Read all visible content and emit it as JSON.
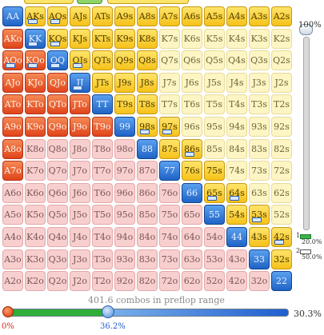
{
  "range_slider": {
    "top_percent": "100%",
    "indicator_1": "20.0%",
    "indicator_2": "50.0%",
    "indicator_1_index": "1",
    "indicator_2_index": "2"
  },
  "combo_label": "401.6 combos in preflop range",
  "bottom_slider": {
    "left_value": "0%",
    "right_value": "36.2%",
    "total_value": "30.3%",
    "right_fraction": 0.362
  },
  "hand_grid": {
    "rows": [
      [
        "AA",
        "AKs",
        "AQs",
        "AJs",
        "ATs",
        "A9s",
        "A8s",
        "A7s",
        "A6s",
        "A5s",
        "A4s",
        "A3s",
        "A2s"
      ],
      [
        "AKo",
        "KK",
        "KQs",
        "KJs",
        "KTs",
        "K9s",
        "K8s",
        "K7s",
        "K6s",
        "K5s",
        "K4s",
        "K3s",
        "K2s"
      ],
      [
        "AQo",
        "KQo",
        "QQ",
        "QJs",
        "QTs",
        "Q9s",
        "Q8s",
        "Q7s",
        "Q6s",
        "Q5s",
        "Q4s",
        "Q3s",
        "Q2s"
      ],
      [
        "AJo",
        "KJo",
        "QJo",
        "JJ",
        "JTs",
        "J9s",
        "J8s",
        "J7s",
        "J6s",
        "J5s",
        "J4s",
        "J3s",
        "J2s"
      ],
      [
        "ATo",
        "KTo",
        "QTo",
        "JTo",
        "TT",
        "T9s",
        "T8s",
        "T7s",
        "T6s",
        "T5s",
        "T4s",
        "T3s",
        "T2s"
      ],
      [
        "A9o",
        "K9o",
        "Q9o",
        "J9o",
        "T9o",
        "99",
        "98s",
        "97s",
        "96s",
        "95s",
        "94s",
        "93s",
        "92s"
      ],
      [
        "A8o",
        "K8o",
        "Q8o",
        "J8o",
        "T8o",
        "98o",
        "88",
        "87s",
        "86s",
        "85s",
        "84s",
        "83s",
        "82s"
      ],
      [
        "A7o",
        "K7o",
        "Q7o",
        "J7o",
        "T7o",
        "97o",
        "87o",
        "77",
        "76s",
        "75s",
        "74s",
        "73s",
        "72s"
      ],
      [
        "A6o",
        "K6o",
        "Q6o",
        "J6o",
        "T6o",
        "96o",
        "86o",
        "76o",
        "66",
        "65s",
        "64s",
        "63s",
        "62s"
      ],
      [
        "A5o",
        "K5o",
        "Q5o",
        "J5o",
        "T5o",
        "95o",
        "85o",
        "75o",
        "65o",
        "55",
        "54s",
        "53s",
        "52s"
      ],
      [
        "A4o",
        "K4o",
        "Q4o",
        "J4o",
        "T4o",
        "94o",
        "84o",
        "74o",
        "64o",
        "54o",
        "44",
        "43s",
        "42s"
      ],
      [
        "A3o",
        "K3o",
        "Q3o",
        "J3o",
        "T3o",
        "93o",
        "83o",
        "73o",
        "63o",
        "53o",
        "43o",
        "33",
        "32s"
      ],
      [
        "A2o",
        "K2o",
        "Q2o",
        "J2o",
        "T2o",
        "92o",
        "82o",
        "72o",
        "62o",
        "52o",
        "42o",
        "32o",
        "22"
      ]
    ],
    "action_rows": [
      "BCCCCCCCCCCCC",
      "RBCCCCCWWWWWW",
      "RRBCCCCWWWWWW",
      "RRRBCCCWWWWWW",
      "RRRRBCCWWWWWW",
      "RRRRRBCCWWWWW",
      "RFFFFFBCCWWWW",
      "RFFFFFFBCCWWW",
      "FFFFFFFFBCCWW",
      "FFFFFFFFFBCCW",
      "FFFFFFFFFFBCC",
      "FFFFFFFFFFFBC",
      "FFFFFFFFFFFFB"
    ],
    "marked_cells": [
      "0-1",
      "0-2",
      "1-1",
      "1-2",
      "2-0",
      "2-1",
      "2-2",
      "2-3",
      "3-3",
      "5-6",
      "5-7",
      "6-8",
      "8-9",
      "8-10",
      "9-11",
      "10-12"
    ],
    "colors": {
      "raise": "#e4521f",
      "call": "#f6c21a",
      "bet": "#1f63c6",
      "fold": "#f8cfcf",
      "cold": "#fdf5c4"
    }
  }
}
